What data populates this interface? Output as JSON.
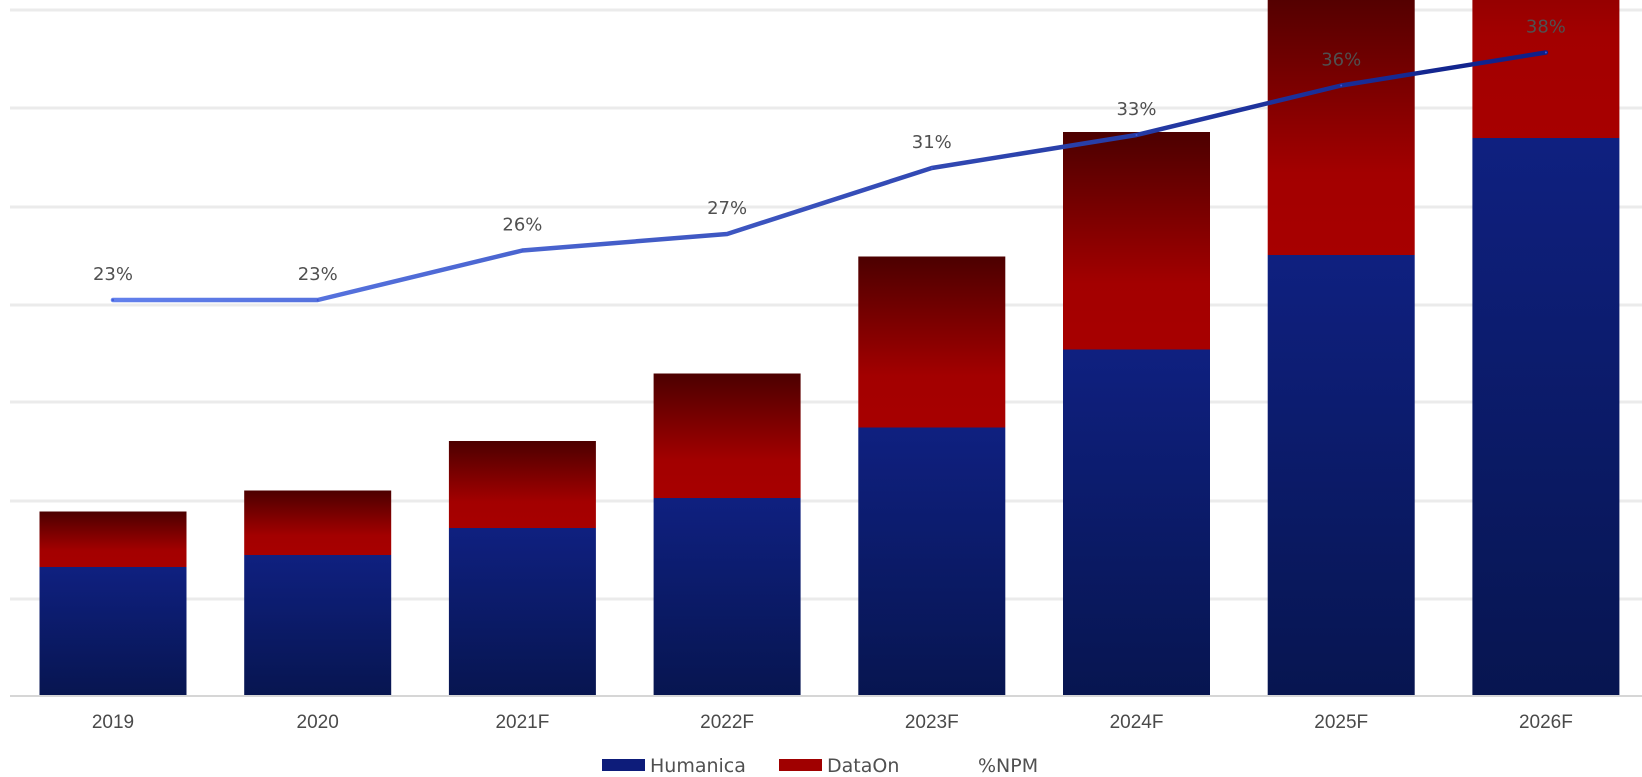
{
  "chart_data": {
    "type": "bar",
    "stacked": true,
    "categories": [
      "2019",
      "2020",
      "2021F",
      "2022F",
      "2023F",
      "2024F",
      "2025F",
      "2026F"
    ],
    "series": [
      {
        "name": "Humanica",
        "type": "bar",
        "values": [
          86,
          94,
          112,
          132,
          179,
          231,
          294,
          372
        ],
        "color": "#0d1c7a"
      },
      {
        "name": "DataOn",
        "type": "bar",
        "values": [
          37,
          43,
          58,
          83,
          114,
          145,
          182,
          225
        ],
        "color": "#a00000"
      },
      {
        "name": "%NPM",
        "type": "line",
        "values": [
          23,
          23,
          26,
          27,
          31,
          33,
          36,
          38
        ],
        "labels": [
          "23%",
          "23%",
          "26%",
          "27%",
          "31%",
          "33%",
          "36%",
          "38%"
        ],
        "color": "#3d55d8"
      }
    ],
    "grid": true,
    "legend": "bottom-center",
    "title": "",
    "xlabel": "",
    "ylabel": ""
  }
}
